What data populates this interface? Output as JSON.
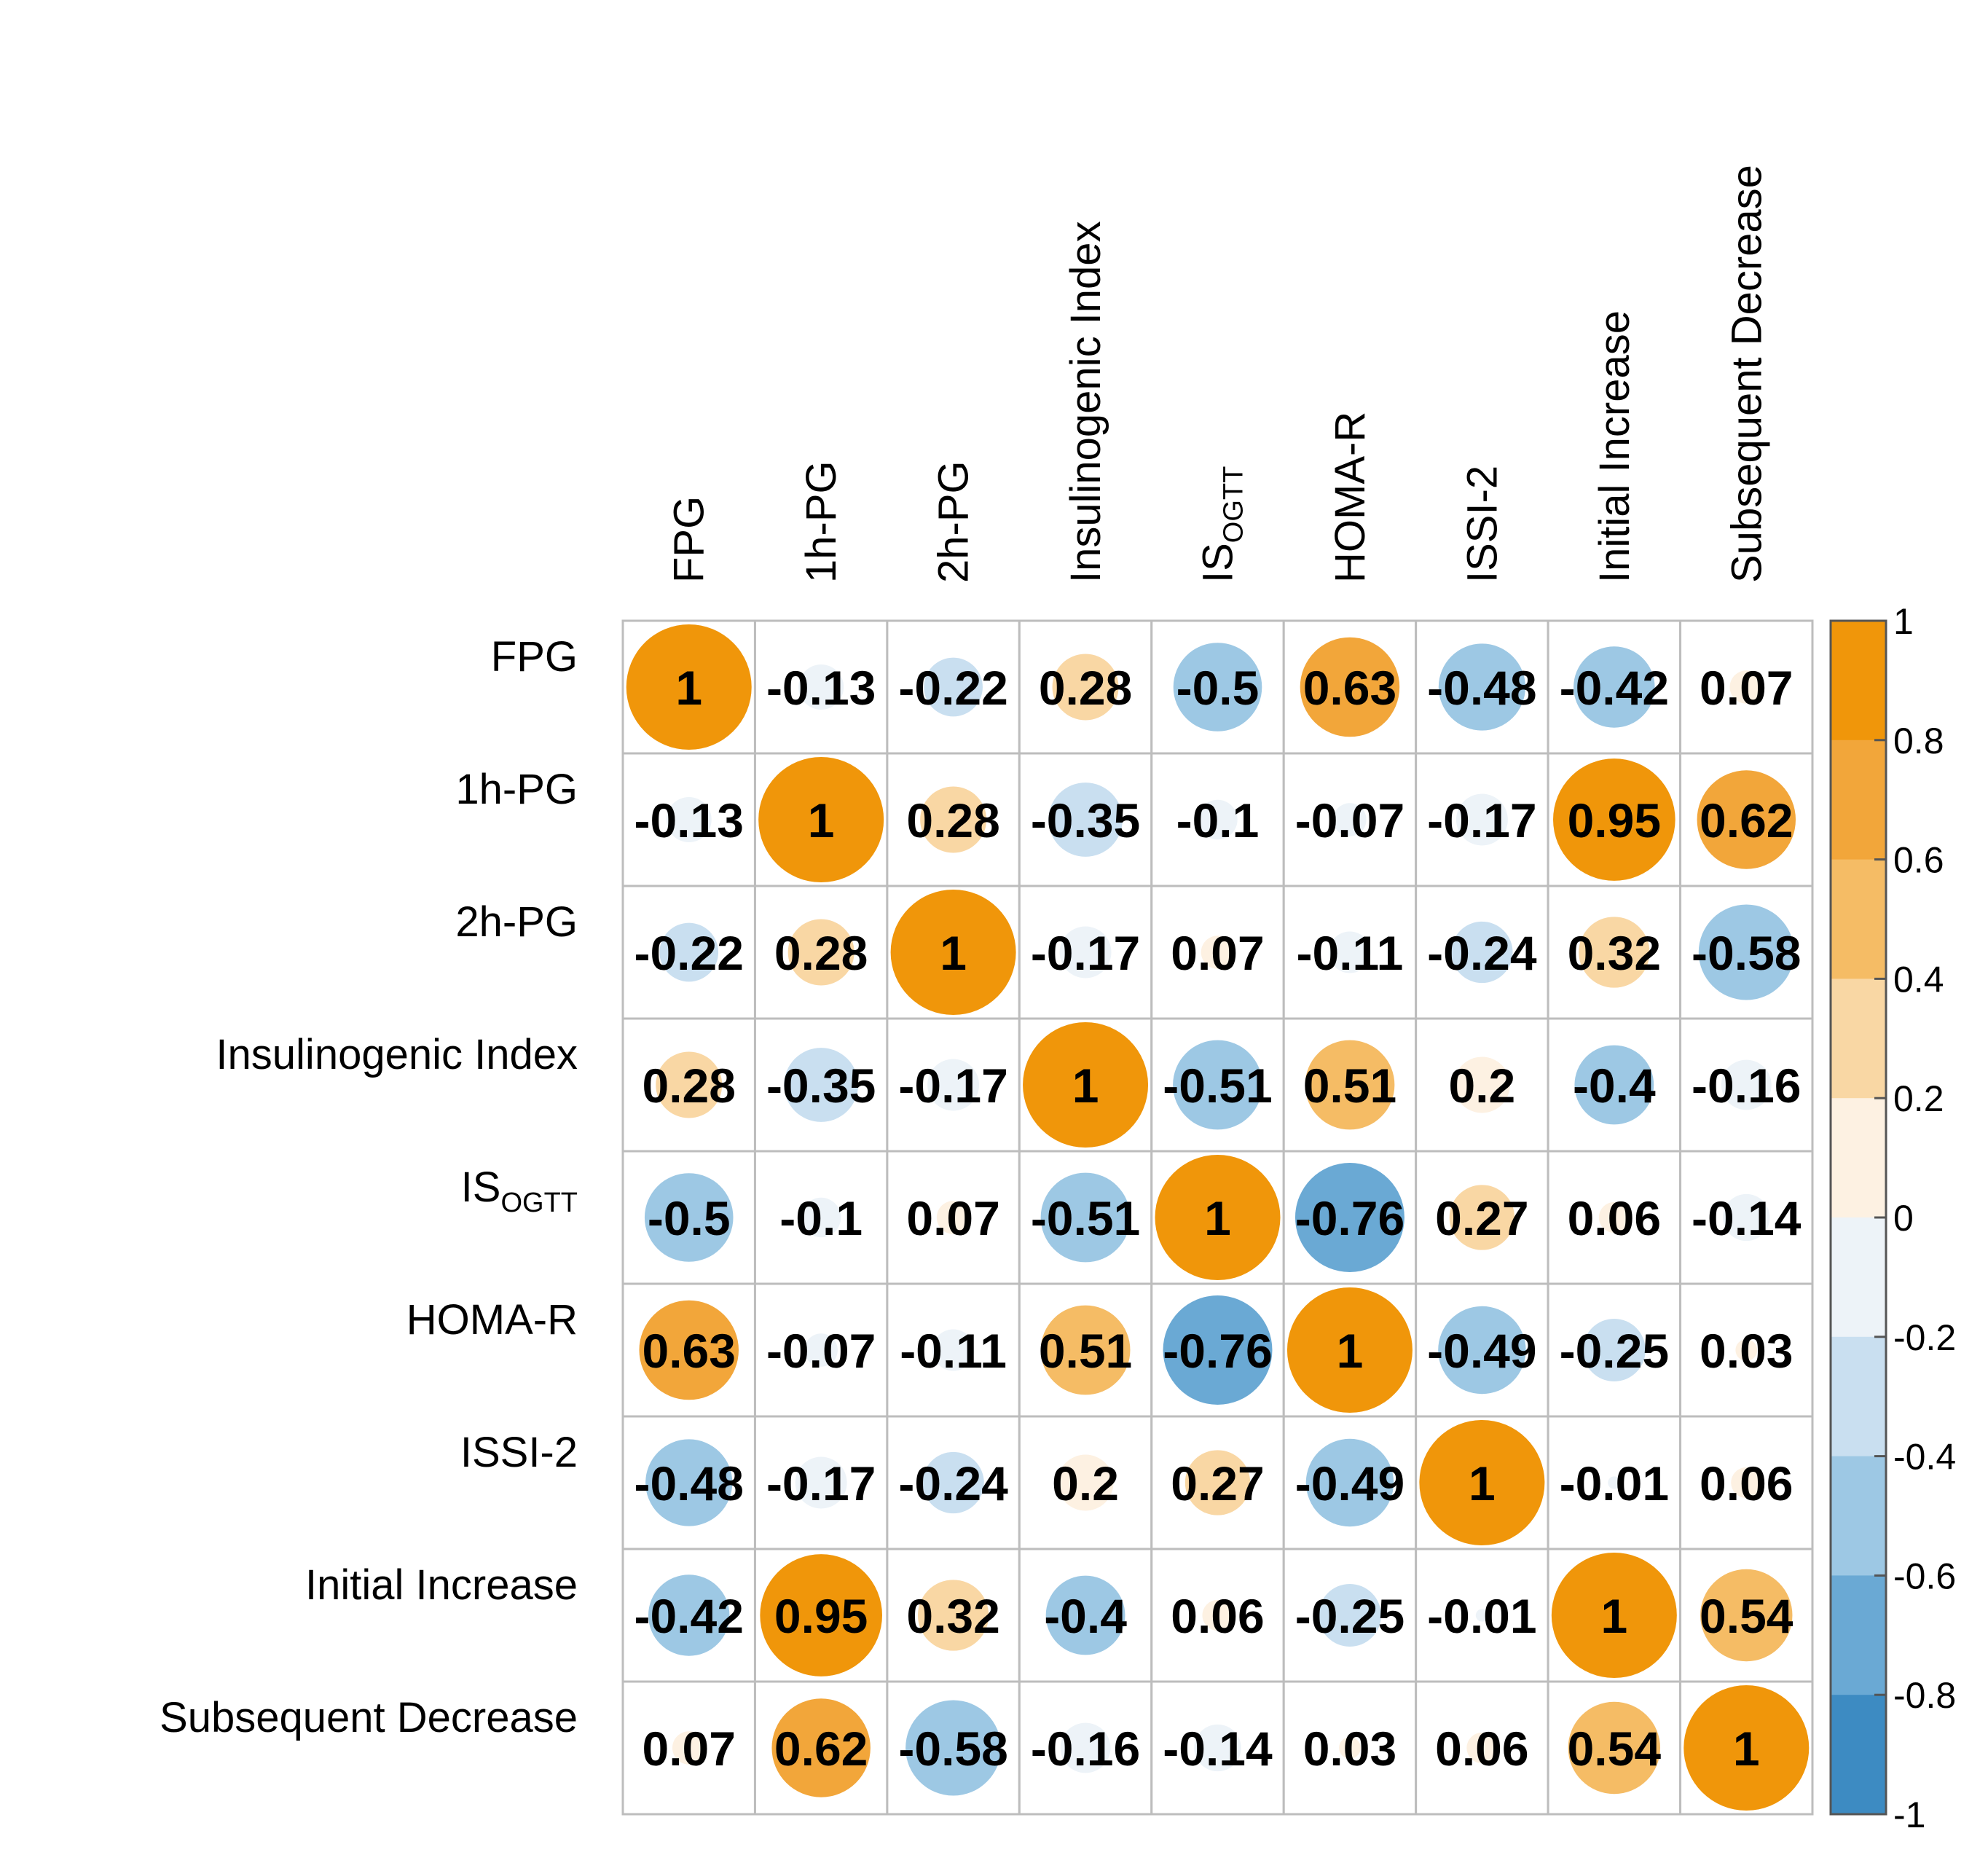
{
  "chart_data": {
    "type": "heatmap",
    "title": "",
    "variables": [
      {
        "name": "FPG",
        "sub": ""
      },
      {
        "name": "1h-PG",
        "sub": ""
      },
      {
        "name": "2h-PG",
        "sub": ""
      },
      {
        "name": "Insulinogenic Index",
        "sub": ""
      },
      {
        "name": "IS",
        "sub": "OGTT"
      },
      {
        "name": "HOMA-R",
        "sub": ""
      },
      {
        "name": "ISSI-2",
        "sub": ""
      },
      {
        "name": "Initial Increase",
        "sub": ""
      },
      {
        "name": "Subsequent Decrease",
        "sub": ""
      }
    ],
    "matrix": [
      [
        "1",
        "-0.13",
        "-0.22",
        "0.28",
        "-0.5",
        "0.63",
        "-0.48",
        "-0.42",
        "0.07"
      ],
      [
        "-0.13",
        "1",
        "0.28",
        "-0.35",
        "-0.1",
        "-0.07",
        "-0.17",
        "0.95",
        "0.62"
      ],
      [
        "-0.22",
        "0.28",
        "1",
        "-0.17",
        "0.07",
        "-0.11",
        "-0.24",
        "0.32",
        "-0.58"
      ],
      [
        "0.28",
        "-0.35",
        "-0.17",
        "1",
        "-0.51",
        "0.51",
        "0.2",
        "-0.4",
        "-0.16"
      ],
      [
        "-0.5",
        "-0.1",
        "0.07",
        "-0.51",
        "1",
        "-0.76",
        "0.27",
        "0.06",
        "-0.14"
      ],
      [
        "0.63",
        "-0.07",
        "-0.11",
        "0.51",
        "-0.76",
        "1",
        "-0.49",
        "-0.25",
        "0.03"
      ],
      [
        "-0.48",
        "-0.17",
        "-0.24",
        "0.2",
        "0.27",
        "-0.49",
        "1",
        "-0.01",
        "0.06"
      ],
      [
        "-0.42",
        "0.95",
        "0.32",
        "-0.4",
        "0.06",
        "-0.25",
        "-0.01",
        "1",
        "0.54"
      ],
      [
        "0.07",
        "0.62",
        "-0.58",
        "-0.16",
        "-0.14",
        "0.03",
        "0.06",
        "0.54",
        "1"
      ]
    ],
    "colorbar": {
      "range": [
        -1,
        1
      ],
      "ticks": [
        "1",
        "0.8",
        "0.6",
        "0.4",
        "0.2",
        "0",
        "-0.2",
        "-0.4",
        "-0.6",
        "-0.8",
        "-1"
      ],
      "bins": [
        {
          "from": 0.8,
          "to": 1.0,
          "color": "#f0960a"
        },
        {
          "from": 0.6,
          "to": 0.8,
          "color": "#f2a63a"
        },
        {
          "from": 0.4,
          "to": 0.6,
          "color": "#f5bc65"
        },
        {
          "from": 0.2,
          "to": 0.4,
          "color": "#f9d7a4"
        },
        {
          "from": 0.0,
          "to": 0.2,
          "color": "#fdf1e2"
        },
        {
          "from": -0.2,
          "to": 0.0,
          "color": "#edf3f8"
        },
        {
          "from": -0.4,
          "to": -0.2,
          "color": "#c9dff0"
        },
        {
          "from": -0.6,
          "to": -0.4,
          "color": "#9dc8e4"
        },
        {
          "from": -0.8,
          "to": -0.6,
          "color": "#6aa9d4"
        },
        {
          "from": -1.0,
          "to": -0.8,
          "color": "#3d8bc2"
        }
      ]
    },
    "legend": "right"
  }
}
